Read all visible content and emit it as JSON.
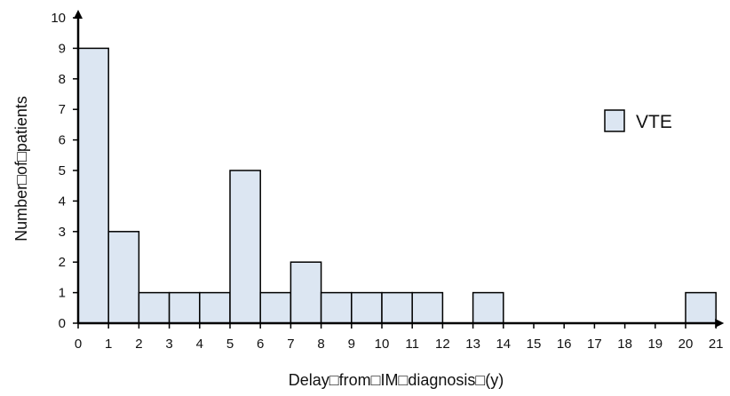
{
  "chart_data": {
    "type": "bar",
    "subtype": "histogram",
    "xlabel": "Delay□from□IM□diagnosis□(y)",
    "ylabel": "Number□of□patients",
    "bin_edges": [
      0,
      1,
      2,
      3,
      4,
      5,
      6,
      7,
      8,
      9,
      10,
      11,
      12,
      13,
      14,
      15,
      16,
      17,
      18,
      19,
      20,
      21
    ],
    "x_tick_labels": [
      "0",
      "1",
      "2",
      "3",
      "4",
      "5",
      "6",
      "7",
      "8",
      "9",
      "10",
      "11",
      "12",
      "13",
      "14",
      "15",
      "16",
      "17",
      "18",
      "19",
      "20",
      "21"
    ],
    "y_tick_labels": [
      "0",
      "1",
      "2",
      "3",
      "4",
      "5",
      "6",
      "7",
      "8",
      "9",
      "10"
    ],
    "ylim": [
      0,
      10
    ],
    "xlim": [
      0,
      21
    ],
    "series": [
      {
        "name": "VTE",
        "values": [
          9,
          3,
          1,
          1,
          1,
          5,
          1,
          2,
          1,
          1,
          1,
          1,
          0,
          1,
          0,
          0,
          0,
          0,
          0,
          0,
          1
        ]
      }
    ],
    "bar_fill": "#dce6f2",
    "bar_stroke": "#000000",
    "legend_position": "right",
    "grid": false
  }
}
